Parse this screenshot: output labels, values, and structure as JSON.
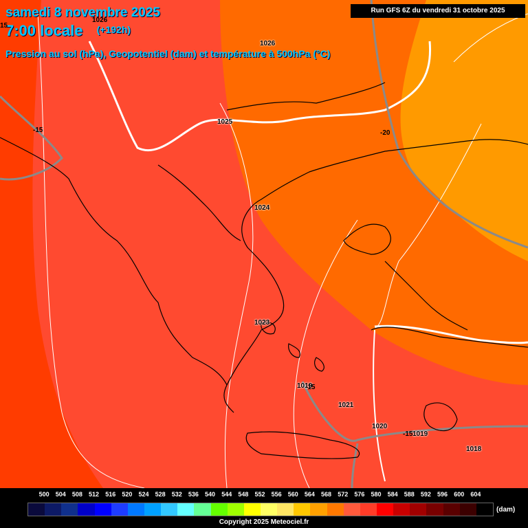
{
  "header": {
    "date_line": "samedi 8 novembre 2025",
    "time_line": "7:00 locale",
    "lead_time": "(+192h)",
    "subtitle": "Pression au sol (hPa), Geopotentiel (dam) et température à 500hPa (°C)",
    "run_info": "Run GFS 6Z du vendredi 31 octobre 2025"
  },
  "map_labels": {
    "isobars": [
      "1026",
      "1025",
      "1024",
      "1023",
      "1021",
      "1020",
      "1018",
      "1019",
      "1019"
    ],
    "isotherms": [
      "-15",
      "-20",
      "-15",
      "-15"
    ],
    "partial_top": "1026",
    "partial_left": "15"
  },
  "legend": {
    "ticks": [
      "500",
      "504",
      "508",
      "512",
      "516",
      "520",
      "524",
      "528",
      "532",
      "536",
      "540",
      "544",
      "548",
      "552",
      "556",
      "560",
      "564",
      "568",
      "572",
      "576",
      "580",
      "584",
      "588",
      "592",
      "596",
      "600",
      "604"
    ],
    "colors": [
      "#0a0a3c",
      "#0d1a66",
      "#10308c",
      "#0000c8",
      "#0000ff",
      "#1e3cff",
      "#0078ff",
      "#00a0ff",
      "#32c8ff",
      "#64ffff",
      "#64ff96",
      "#64ff00",
      "#a0ff00",
      "#ffff00",
      "#ffff64",
      "#ffe664",
      "#ffc800",
      "#ffa000",
      "#ff7800",
      "#ff5a3c",
      "#ff3c28",
      "#ff0000",
      "#c80000",
      "#a00000",
      "#780000",
      "#5a0000",
      "#3c0000",
      "#000000"
    ],
    "unit": "(dam)",
    "copyright": "Copyright 2025 Meteociel.fr"
  },
  "colors": {
    "dam_576": "#ff5a3c",
    "dam_572": "#ff6a00",
    "dam_568": "#ff9a00",
    "dam_580": "#ff3c00",
    "title": "#00c8ff"
  }
}
